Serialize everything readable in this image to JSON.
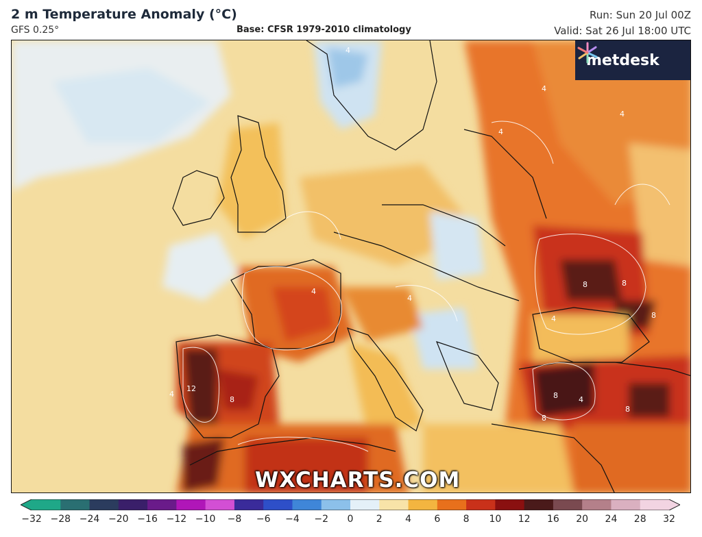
{
  "header": {
    "title": "2 m Temperature Anomaly (°C)",
    "model": "GFS 0.25°",
    "base": "Base: CFSR 1979-2010 climatology",
    "run": "Run: Sun 20 Jul 00Z",
    "valid": "Valid: Sat 26 Jul 18:00 UTC"
  },
  "logo": {
    "text": "metdesk"
  },
  "watermark": "WXCHARTS.COM",
  "legend": {
    "ticks": [
      "−32",
      "−28",
      "−24",
      "−20",
      "−16",
      "−12",
      "−10",
      "−8",
      "−6",
      "−4",
      "−2",
      "0",
      "2",
      "4",
      "6",
      "8",
      "10",
      "12",
      "16",
      "20",
      "24",
      "28",
      "32"
    ],
    "colors": [
      "#1fa888",
      "#2a6f72",
      "#2b3c5e",
      "#3a1f6a",
      "#6a1b8a",
      "#b016b8",
      "#d34fd4",
      "#3a2b9a",
      "#2e4fc8",
      "#3f86d8",
      "#8cc0ea",
      "#e4f0f8",
      "#f8e3a8",
      "#f3b540",
      "#e8701c",
      "#c9311a",
      "#8a1010",
      "#4a1a1a",
      "#7a4a50",
      "#b4808a",
      "#dab0c0",
      "#f2d4e2"
    ]
  },
  "map_labels": [
    "4",
    "4",
    "4",
    "4",
    "4",
    "4",
    "4",
    "4",
    "8",
    "8",
    "8",
    "8",
    "12",
    "8",
    "8",
    "4",
    "8"
  ],
  "colors": {
    "ocean_neutral": "#f3e2a8",
    "cool": "#d5e6f2",
    "warm": "#f0a84a",
    "hot": "#d9481c",
    "very_hot": "#9a1a10",
    "extreme": "#4a1414"
  }
}
